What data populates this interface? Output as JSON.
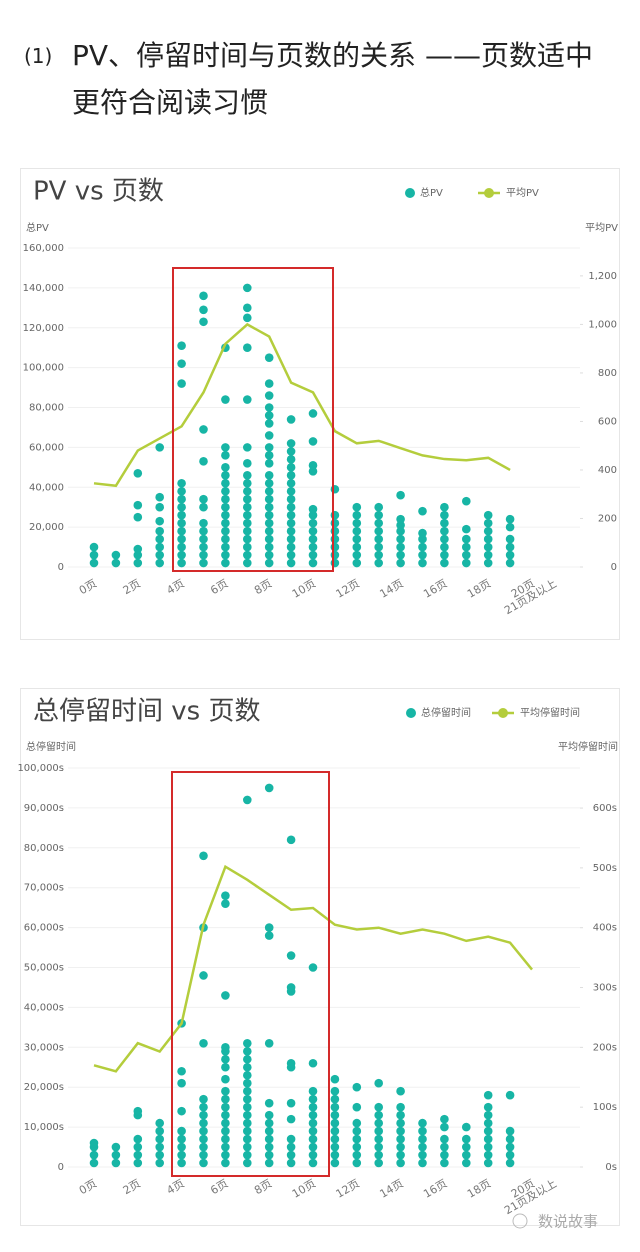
{
  "heading": {
    "number": "(1)",
    "text": "PV、停留时间与页数的关系 ——页数适中更符合阅读习惯"
  },
  "watermark": "数说故事",
  "chart_data": [
    {
      "type": "combo",
      "title": "PV vs 页数",
      "y_label": "总PV",
      "y2_label": "平均PV",
      "legend": "top-right",
      "categories": [
        "0页",
        null,
        "2页",
        null,
        "4页",
        null,
        "6页",
        null,
        "8页",
        null,
        "10页",
        null,
        "12页",
        null,
        "14页",
        null,
        "16页",
        null,
        "18页",
        null,
        "20页",
        "21页及以上"
      ],
      "ylim": [
        0,
        160000
      ],
      "yticks": [
        0,
        {
          "value": 20000,
          "label": "20,000"
        },
        {
          "value": 40000,
          "label": "40,000"
        },
        {
          "value": 60000,
          "label": "60,000"
        },
        {
          "value": 80000,
          "label": "80,000"
        },
        {
          "value": 100000,
          "label": "100,000"
        },
        {
          "value": 120000,
          "label": "120,000"
        },
        {
          "value": 140000,
          "label": "140,000"
        },
        {
          "value": 160000,
          "label": "160,000"
        }
      ],
      "y2lim": [
        0,
        1315
      ],
      "y2ticks": [
        0,
        200,
        400,
        600,
        800,
        {
          "value": 1000,
          "label": "1,000"
        },
        {
          "value": 1200,
          "label": "1,200"
        }
      ],
      "grid": true,
      "series": [
        {
          "name": "总PV",
          "type": "scatter",
          "color": "#17b5a5",
          "values": [
            [
              2000,
              6000,
              10000
            ],
            [
              2000,
              6000
            ],
            [
              2000,
              6000,
              9000,
              25000,
              31000,
              47000
            ],
            [
              2000,
              6000,
              10000,
              14000,
              18000,
              23000,
              30000,
              35000,
              60000
            ],
            [
              2000,
              6000,
              10000,
              14000,
              18000,
              22000,
              26000,
              30000,
              34000,
              38000,
              42000,
              92000,
              102000,
              111000
            ],
            [
              2000,
              6000,
              10000,
              14000,
              18000,
              22000,
              30000,
              34000,
              53000,
              69000,
              123000,
              129000,
              136000
            ],
            [
              2000,
              6000,
              10000,
              14000,
              18000,
              22000,
              26000,
              30000,
              34000,
              38000,
              42000,
              46000,
              50000,
              56000,
              60000,
              84000,
              110000
            ],
            [
              2000,
              6000,
              10000,
              14000,
              18000,
              22000,
              26000,
              30000,
              34000,
              38000,
              42000,
              46000,
              52000,
              60000,
              84000,
              110000,
              125000,
              130000,
              140000
            ],
            [
              2000,
              6000,
              10000,
              14000,
              18000,
              22000,
              26000,
              30000,
              34000,
              38000,
              42000,
              46000,
              52000,
              56000,
              60000,
              66000,
              72000,
              76000,
              80000,
              86000,
              92000,
              105000
            ],
            [
              2000,
              6000,
              10000,
              14000,
              18000,
              22000,
              26000,
              30000,
              34000,
              38000,
              42000,
              46000,
              50000,
              54000,
              58000,
              62000,
              74000
            ],
            [
              2000,
              6000,
              10000,
              14000,
              18000,
              22000,
              26000,
              29000,
              48000,
              51000,
              63000,
              77000
            ],
            [
              2000,
              6000,
              10000,
              14000,
              18000,
              22000,
              26000,
              39000
            ],
            [
              2000,
              6000,
              10000,
              14000,
              18000,
              22000,
              26000,
              30000
            ],
            [
              2000,
              6000,
              10000,
              14000,
              18000,
              22000,
              26000,
              30000
            ],
            [
              2000,
              6000,
              10000,
              14000,
              18000,
              21000,
              24000,
              36000
            ],
            [
              2000,
              6000,
              10000,
              14000,
              17000,
              28000
            ],
            [
              2000,
              6000,
              10000,
              14000,
              18000,
              22000,
              26000,
              30000
            ],
            [
              2000,
              6000,
              10000,
              14000,
              19000,
              33000
            ],
            [
              2000,
              6000,
              10000,
              14000,
              18000,
              22000,
              26000
            ],
            [
              2000,
              6000,
              10000,
              14000,
              20000,
              24000
            ],
            [],
            []
          ]
        },
        {
          "name": "平均PV",
          "type": "line",
          "axis": "y2",
          "color": "#b4cd3c",
          "values": [
            345,
            335,
            480,
            530,
            580,
            720,
            920,
            1000,
            950,
            760,
            720,
            560,
            510,
            520,
            490,
            460,
            445,
            440,
            450,
            400,
            null,
            null
          ]
        }
      ]
    },
    {
      "type": "combo",
      "title": "总停留时间 vs 页数",
      "y_label": "总停留时间",
      "y2_label": "平均停留时间",
      "legend": "top-right",
      "categories": [
        "0页",
        null,
        "2页",
        null,
        "4页",
        null,
        "6页",
        null,
        "8页",
        null,
        "10页",
        null,
        "12页",
        null,
        "14页",
        null,
        "16页",
        null,
        "18页",
        null,
        "20页",
        "21页及以上"
      ],
      "ylim": [
        0,
        100000
      ],
      "yticks": [
        0,
        {
          "value": 10000,
          "label": "10,000s"
        },
        {
          "value": 20000,
          "label": "20,000s"
        },
        {
          "value": 30000,
          "label": "30,000s"
        },
        {
          "value": 40000,
          "label": "40,000s"
        },
        {
          "value": 50000,
          "label": "50,000s"
        },
        {
          "value": 60000,
          "label": "60,000s"
        },
        {
          "value": 70000,
          "label": "70,000s"
        },
        {
          "value": 80000,
          "label": "80,000s"
        },
        {
          "value": 90000,
          "label": "90,000s"
        },
        {
          "value": 100000,
          "label": "100,000s"
        }
      ],
      "y2lim": [
        0,
        667
      ],
      "y2ticks": [
        {
          "value": 0,
          "label": "0s"
        },
        {
          "value": 100,
          "label": "100s"
        },
        {
          "value": 200,
          "label": "200s"
        },
        {
          "value": 300,
          "label": "300s"
        },
        {
          "value": 400,
          "label": "400s"
        },
        {
          "value": 500,
          "label": "500s"
        },
        {
          "value": 600,
          "label": "600s"
        }
      ],
      "grid": true,
      "series": [
        {
          "name": "总停留时间",
          "type": "scatter",
          "color": "#17b5a5",
          "values": [
            [
              1000,
              3000,
              5000,
              6000
            ],
            [
              1000,
              3000,
              5000
            ],
            [
              1000,
              3000,
              5000,
              7000,
              13000,
              14000
            ],
            [
              1000,
              3000,
              5000,
              7000,
              9000,
              11000
            ],
            [
              1000,
              3000,
              5000,
              7000,
              9000,
              14000,
              21000,
              24000,
              36000
            ],
            [
              1000,
              3000,
              5000,
              7000,
              9000,
              11000,
              13000,
              15000,
              17000,
              31000,
              48000,
              60000,
              78000
            ],
            [
              1000,
              3000,
              5000,
              7000,
              9000,
              11000,
              13000,
              15000,
              17000,
              19000,
              22000,
              25000,
              27000,
              29000,
              30000,
              43000,
              66000,
              68000
            ],
            [
              1000,
              3000,
              5000,
              7000,
              9000,
              11000,
              13000,
              15000,
              17000,
              19000,
              21000,
              23000,
              25000,
              27000,
              29000,
              31000,
              92000
            ],
            [
              1000,
              3000,
              5000,
              7000,
              9000,
              11000,
              13000,
              16000,
              31000,
              58000,
              60000,
              95000
            ],
            [
              1000,
              3000,
              5000,
              7000,
              12000,
              16000,
              25000,
              26000,
              44000,
              45000,
              53000,
              82000
            ],
            [
              1000,
              3000,
              5000,
              7000,
              9000,
              11000,
              13000,
              15000,
              17000,
              19000,
              26000,
              50000
            ],
            [
              1000,
              3000,
              5000,
              7000,
              9000,
              11000,
              13000,
              15000,
              17000,
              19000,
              22000
            ],
            [
              1000,
              3000,
              5000,
              7000,
              9000,
              11000,
              15000,
              20000
            ],
            [
              1000,
              3000,
              5000,
              7000,
              9000,
              11000,
              13000,
              15000,
              21000
            ],
            [
              1000,
              3000,
              5000,
              7000,
              9000,
              11000,
              13000,
              15000,
              19000
            ],
            [
              1000,
              3000,
              5000,
              7000,
              9000,
              11000
            ],
            [
              1000,
              3000,
              5000,
              7000,
              10000,
              12000
            ],
            [
              1000,
              3000,
              5000,
              7000,
              10000
            ],
            [
              1000,
              3000,
              5000,
              7000,
              9000,
              11000,
              13000,
              15000,
              18000
            ],
            [
              1000,
              3000,
              5000,
              7000,
              9000,
              18000
            ],
            [],
            []
          ]
        },
        {
          "name": "平均停留时间",
          "type": "line",
          "axis": "y2",
          "color": "#b4cd3c",
          "values": [
            170,
            160,
            207,
            193,
            240,
            405,
            502,
            480,
            455,
            430,
            433,
            405,
            397,
            400,
            390,
            397,
            390,
            378,
            385,
            375,
            330,
            null
          ]
        }
      ]
    }
  ]
}
